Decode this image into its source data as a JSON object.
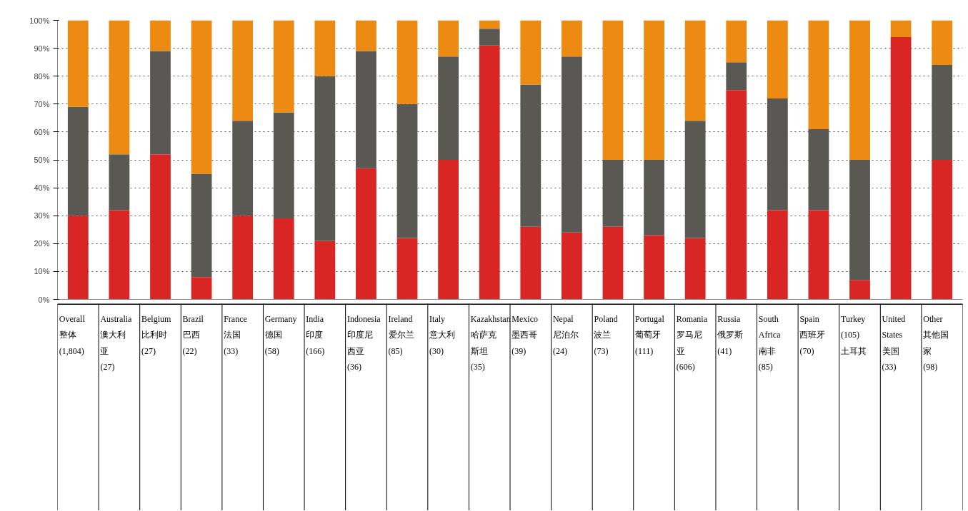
{
  "chart_data": {
    "type": "bar",
    "stacked": true,
    "categories": [
      "Overall 整体 (1,804)",
      "Australia 澳大利亚 (27)",
      "Belgium 比利时 (27)",
      "Brazil 巴西 (22)",
      "France 法国 (33)",
      "Germany 德国 (58)",
      "India 印度 (166)",
      "Indonesia 印度尼西亚 (36)",
      "Ireland 爱尔兰 (85)",
      "Italy 意大利 (30)",
      "Kazakhstan 哈萨克斯坦 (35)",
      "Mexico 墨西哥 (39)",
      "Nepal 尼泊尔 (24)",
      "Poland 波兰 (73)",
      "Portugal 葡萄牙 (111)",
      "Romania 罗马尼亚 (606)",
      "Russia 俄罗斯 (41)",
      "South Africa 南非 (85)",
      "Spain 西班牙 (70)",
      "Turkey (105) 土耳其",
      "United States 美国 (33)",
      "Other 其他国家 (98)"
    ],
    "series": [
      {
        "color": "#d92624",
        "values": [
          30,
          32,
          52,
          8,
          30,
          29,
          21,
          47,
          22,
          50,
          91,
          26,
          24,
          26,
          23,
          22,
          75,
          32,
          32,
          7,
          94,
          50
        ]
      },
      {
        "color": "#595853",
        "values": [
          39,
          20,
          37,
          37,
          34,
          38,
          59,
          42,
          48,
          37,
          6,
          51,
          63,
          24,
          27,
          42,
          10,
          40,
          29,
          43,
          0,
          34
        ]
      },
      {
        "color": "#ec8a12",
        "values": [
          31,
          48,
          11,
          55,
          36,
          33,
          20,
          11,
          30,
          13,
          3,
          23,
          13,
          50,
          50,
          36,
          15,
          28,
          39,
          50,
          6,
          16
        ]
      }
    ],
    "ylim": [
      0,
      100
    ],
    "yticks": [
      {
        "value": 0,
        "label": "0%"
      },
      {
        "value": 10,
        "label": "10%"
      },
      {
        "value": 20,
        "label": "20%"
      },
      {
        "value": 30,
        "label": "30%"
      },
      {
        "value": 40,
        "label": "40%"
      },
      {
        "value": 50,
        "label": "50%"
      },
      {
        "value": 60,
        "label": "60%"
      },
      {
        "value": 70,
        "label": "70%"
      },
      {
        "value": 80,
        "label": "80%"
      },
      {
        "value": 90,
        "label": "90%"
      },
      {
        "value": 100,
        "label": "100%"
      }
    ],
    "grid": "y",
    "tick_labels": "y"
  }
}
